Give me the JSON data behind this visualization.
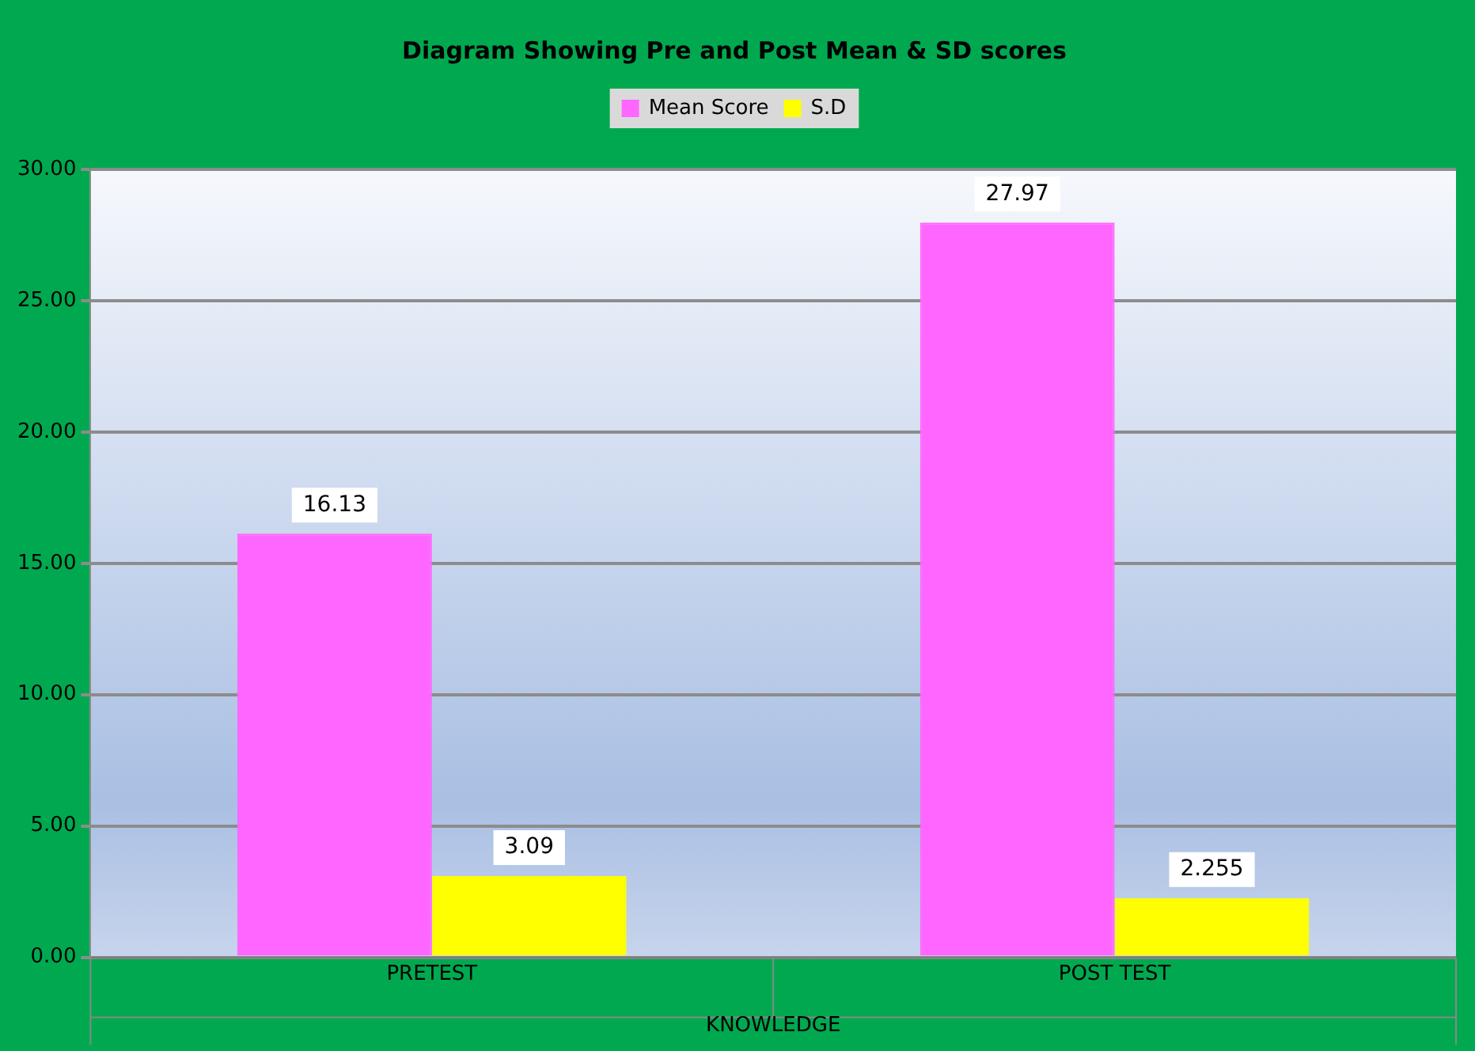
{
  "chart_data": {
    "type": "bar",
    "title": "Diagram Showing Pre and Post Mean & SD scores",
    "xlabel": "KNOWLEDGE",
    "categories": [
      "PRETEST",
      "POST TEST"
    ],
    "series": [
      {
        "name": "Mean Score",
        "color": "#ff66ff",
        "values": [
          16.13,
          27.97
        ]
      },
      {
        "name": "S.D",
        "color": "#ffff00",
        "values": [
          3.09,
          2.255
        ]
      }
    ],
    "ylim": [
      0,
      30
    ],
    "yticks": [
      {
        "value": 0,
        "label": "0.00"
      },
      {
        "value": 5,
        "label": "5.00"
      },
      {
        "value": 10,
        "label": "10.00"
      },
      {
        "value": 15,
        "label": "15.00"
      },
      {
        "value": 20,
        "label": "20.00"
      },
      {
        "value": 25,
        "label": "25.00"
      },
      {
        "value": 30,
        "label": "30.00"
      }
    ],
    "grid": "y",
    "legend": "top",
    "data_labels": true
  }
}
